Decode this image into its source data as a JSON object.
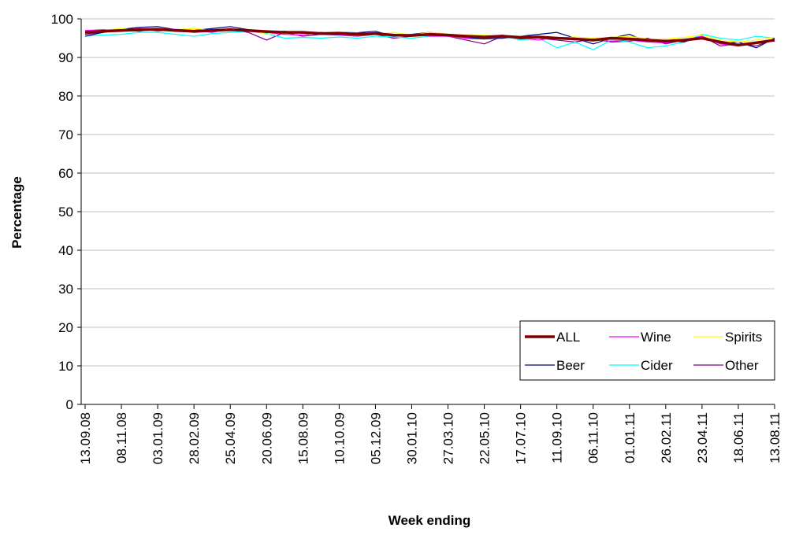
{
  "chart_data": {
    "type": "line",
    "x_label": "Week ending",
    "y_label": "Percentage",
    "categories": [
      "13.09.08",
      null,
      "08.11.08",
      null,
      "03.01.09",
      null,
      "28.02.09",
      null,
      "25.04.09",
      null,
      "20.06.09",
      null,
      "15.08.09",
      null,
      "10.10.09",
      null,
      "05.12.09",
      null,
      "30.01.10",
      null,
      "27.03.10",
      null,
      "22.05.10",
      null,
      "17.07.10",
      null,
      "11.09.10",
      null,
      "06.11.10",
      null,
      "01.01.11",
      null,
      "26.02.11",
      null,
      "23.04.11",
      null,
      "18.06.11",
      null,
      "13.08.11"
    ],
    "series": [
      {
        "name": "ALL",
        "color": "#800000",
        "width": 3.5,
        "values": [
          96.5,
          96.8,
          97.0,
          97.2,
          97.3,
          97.0,
          96.8,
          97.0,
          97.2,
          97.0,
          96.7,
          96.5,
          96.5,
          96.2,
          96.3,
          96.0,
          96.2,
          95.8,
          95.7,
          96.0,
          95.8,
          95.5,
          95.3,
          95.5,
          95.2,
          95.3,
          95.0,
          94.8,
          94.5,
          95.0,
          94.8,
          94.5,
          94.2,
          94.5,
          95.0,
          94.0,
          93.2,
          93.8,
          94.5
        ]
      },
      {
        "name": "Wine",
        "color": "#ff00ff",
        "width": 1.2,
        "values": [
          97.0,
          97.2,
          96.8,
          97.5,
          96.8,
          97.3,
          97.0,
          96.5,
          97.5,
          96.8,
          96.5,
          96.0,
          95.8,
          96.5,
          96.0,
          95.5,
          96.2,
          95.5,
          96.0,
          95.5,
          95.5,
          95.0,
          95.5,
          95.8,
          95.0,
          94.5,
          95.2,
          94.5,
          94.8,
          94.2,
          94.5,
          94.0,
          93.8,
          94.5,
          95.5,
          93.5,
          93.0,
          94.0,
          94.2
        ]
      },
      {
        "name": "Spirits",
        "color": "#ffff00",
        "width": 1.2,
        "values": [
          96.8,
          97.0,
          97.5,
          97.0,
          97.5,
          97.2,
          97.5,
          97.0,
          96.8,
          97.3,
          96.0,
          96.3,
          96.5,
          96.0,
          96.5,
          96.3,
          96.0,
          96.5,
          95.8,
          96.5,
          96.0,
          95.8,
          95.8,
          95.3,
          95.5,
          95.5,
          95.0,
          95.3,
          95.0,
          95.2,
          95.5,
          94.8,
          94.8,
          95.2,
          95.8,
          94.5,
          94.0,
          94.5,
          95.2
        ]
      },
      {
        "name": "Beer",
        "color": "#000080",
        "width": 1.2,
        "values": [
          95.5,
          96.5,
          97.3,
          97.8,
          98.0,
          97.2,
          97.0,
          97.5,
          98.0,
          97.2,
          96.5,
          96.8,
          96.3,
          96.0,
          96.5,
          96.4,
          96.8,
          95.5,
          96.0,
          96.5,
          96.0,
          95.0,
          94.8,
          95.0,
          95.5,
          96.0,
          96.5,
          95.0,
          93.5,
          95.0,
          96.0,
          94.0,
          94.5,
          94.0,
          95.5,
          93.5,
          94.0,
          92.5,
          95.0
        ]
      },
      {
        "name": "Cider",
        "color": "#00ffff",
        "width": 1.2,
        "values": [
          95.5,
          95.8,
          96.0,
          96.5,
          96.5,
          96.0,
          95.5,
          96.2,
          96.5,
          96.8,
          96.2,
          95.0,
          95.2,
          95.0,
          95.3,
          95.0,
          95.5,
          95.3,
          95.0,
          95.5,
          95.5,
          95.0,
          95.3,
          95.5,
          94.5,
          95.0,
          92.5,
          94.0,
          92.0,
          94.5,
          94.0,
          92.5,
          93.0,
          94.0,
          96.0,
          95.0,
          94.5,
          95.5,
          95.0
        ]
      },
      {
        "name": "Other",
        "color": "#800080",
        "width": 1.2,
        "values": [
          96.0,
          96.5,
          97.0,
          96.8,
          97.5,
          97.0,
          96.5,
          96.8,
          97.2,
          96.5,
          94.5,
          96.5,
          95.5,
          96.0,
          95.8,
          95.5,
          96.0,
          95.0,
          95.5,
          96.0,
          95.5,
          94.5,
          93.5,
          95.5,
          94.8,
          95.0,
          94.5,
          94.0,
          94.8,
          94.0,
          94.2,
          95.0,
          93.5,
          94.5,
          95.5,
          93.0,
          93.5,
          93.0,
          94.8
        ]
      }
    ],
    "ylim": [
      0,
      100
    ],
    "yticks": [
      0,
      10,
      20,
      30,
      40,
      50,
      60,
      70,
      80,
      90,
      100
    ],
    "grid": true,
    "legend": "lower-right"
  }
}
